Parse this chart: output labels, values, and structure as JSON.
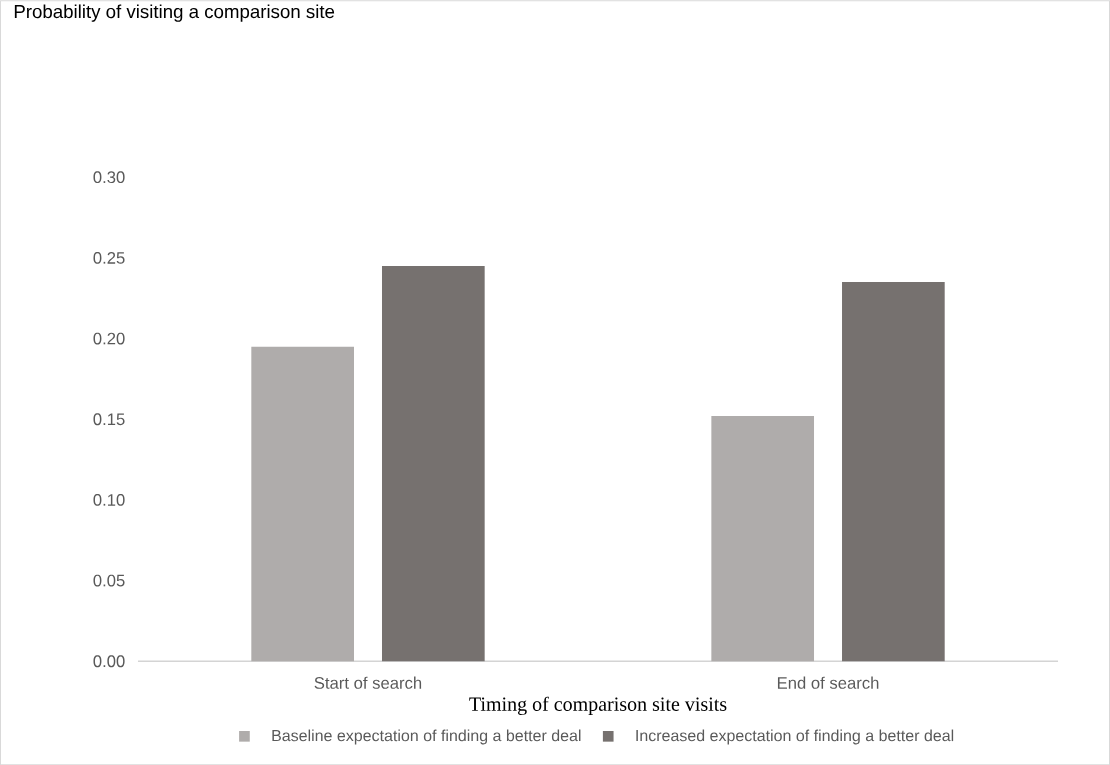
{
  "chart_data": {
    "type": "bar",
    "title": "Probability of visiting a comparison site",
    "xlabel": "Timing of comparison site visits",
    "categories": [
      "Start of search",
      "End of search"
    ],
    "series": [
      {
        "name": "Baseline expectation of finding a better deal",
        "color": "#afacab",
        "values": [
          0.195,
          0.152
        ]
      },
      {
        "name": "Increased expectation of finding a better deal",
        "color": "#76716f",
        "values": [
          0.245,
          0.235
        ]
      }
    ],
    "ylim": [
      0,
      0.3
    ],
    "yticks": [
      {
        "value": 0,
        "label": "0.00"
      },
      {
        "value": 0.05,
        "label": "0.05"
      },
      {
        "value": 0.1,
        "label": "0.10"
      },
      {
        "value": 0.15,
        "label": "0.15"
      },
      {
        "value": 0.2,
        "label": "0.20"
      },
      {
        "value": 0.25,
        "label": "0.25"
      },
      {
        "value": 0.3,
        "label": "0.30"
      }
    ],
    "grid": false,
    "legend": "bottom"
  }
}
